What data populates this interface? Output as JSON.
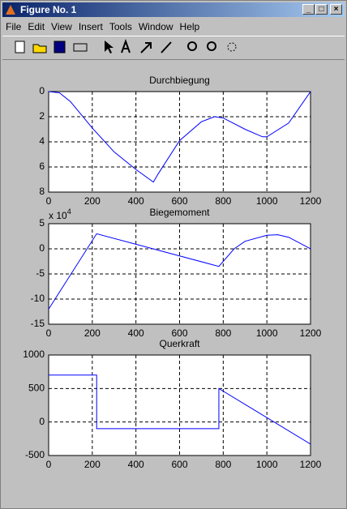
{
  "window": {
    "title": "Figure No. 1",
    "menus": [
      "File",
      "Edit",
      "View",
      "Insert",
      "Tools",
      "Window",
      "Help"
    ]
  },
  "chart_data": [
    {
      "type": "line",
      "title": "Durchbiegung",
      "y_reversed": true,
      "grid": true,
      "color": "#0000ff",
      "xlim": [
        0,
        1200
      ],
      "xticks": [
        0,
        200,
        400,
        600,
        800,
        1000,
        1200
      ],
      "ylim": [
        0,
        8
      ],
      "yticks": [
        0,
        2,
        4,
        6,
        8
      ],
      "x": [
        0,
        50,
        100,
        200,
        300,
        400,
        480,
        500,
        600,
        700,
        760,
        800,
        900,
        980,
        1000,
        1100,
        1200
      ],
      "values": [
        0,
        0.1,
        0.8,
        2.9,
        4.8,
        6.2,
        7.2,
        6.6,
        3.9,
        2.4,
        2.0,
        2.1,
        3.0,
        3.6,
        3.6,
        2.5,
        0
      ]
    },
    {
      "type": "line",
      "title": "Biegemoment",
      "grid": true,
      "color": "#0000ff",
      "y_multiplier": "x 10",
      "y_multiplier_exponent": "4",
      "xlim": [
        0,
        1200
      ],
      "xticks": [
        0,
        200,
        400,
        600,
        800,
        1000,
        1200
      ],
      "ylim": [
        -15,
        5
      ],
      "yticks": [
        5,
        0,
        -5,
        -10,
        -15
      ],
      "x": [
        0,
        220,
        780,
        850,
        900,
        1000,
        1050,
        1100,
        1200
      ],
      "values": [
        -12,
        3,
        -3.5,
        0,
        1.5,
        2.7,
        2.8,
        2.3,
        0
      ]
    },
    {
      "type": "line",
      "title": "Querkraft",
      "grid": true,
      "color": "#0000ff",
      "xlim": [
        0,
        1200
      ],
      "xticks": [
        0,
        200,
        400,
        600,
        800,
        1000,
        1200
      ],
      "ylim": [
        -500,
        1000
      ],
      "yticks": [
        1000,
        500,
        0,
        -500
      ],
      "x": [
        0,
        220,
        220,
        780,
        780,
        1200
      ],
      "values": [
        700,
        700,
        -100,
        -100,
        500,
        -330
      ]
    }
  ]
}
